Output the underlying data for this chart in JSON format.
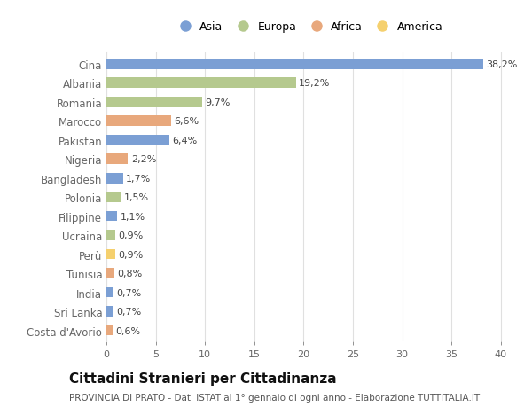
{
  "countries": [
    "Cina",
    "Albania",
    "Romania",
    "Marocco",
    "Pakistan",
    "Nigeria",
    "Bangladesh",
    "Polonia",
    "Filippine",
    "Ucraina",
    "Perù",
    "Tunisia",
    "India",
    "Sri Lanka",
    "Costa d'Avorio"
  ],
  "values": [
    38.2,
    19.2,
    9.7,
    6.6,
    6.4,
    2.2,
    1.7,
    1.5,
    1.1,
    0.9,
    0.9,
    0.8,
    0.7,
    0.7,
    0.6
  ],
  "labels": [
    "38,2%",
    "19,2%",
    "9,7%",
    "6,6%",
    "6,4%",
    "2,2%",
    "1,7%",
    "1,5%",
    "1,1%",
    "0,9%",
    "0,9%",
    "0,8%",
    "0,7%",
    "0,7%",
    "0,6%"
  ],
  "continents": [
    "Asia",
    "Europa",
    "Europa",
    "Africa",
    "Asia",
    "Africa",
    "Asia",
    "Europa",
    "Asia",
    "Europa",
    "America",
    "Africa",
    "Asia",
    "Asia",
    "Africa"
  ],
  "continent_colors": {
    "Asia": "#7b9fd4",
    "Europa": "#b5c98e",
    "Africa": "#e8a87c",
    "America": "#f5d06e"
  },
  "legend_order": [
    "Asia",
    "Europa",
    "Africa",
    "America"
  ],
  "title": "Cittadini Stranieri per Cittadinanza",
  "subtitle": "PROVINCIA DI PRATO - Dati ISTAT al 1° gennaio di ogni anno - Elaborazione TUTTITALIA.IT",
  "xlim": [
    0,
    41
  ],
  "xticks": [
    0,
    5,
    10,
    15,
    20,
    25,
    30,
    35,
    40
  ],
  "background_color": "#ffffff",
  "grid_color": "#e0e0e0",
  "bar_height": 0.55,
  "label_fontsize": 8.0,
  "ytick_fontsize": 8.5,
  "xtick_fontsize": 8.0,
  "axis_label_color": "#666666",
  "title_fontsize": 11,
  "subtitle_fontsize": 7.5
}
